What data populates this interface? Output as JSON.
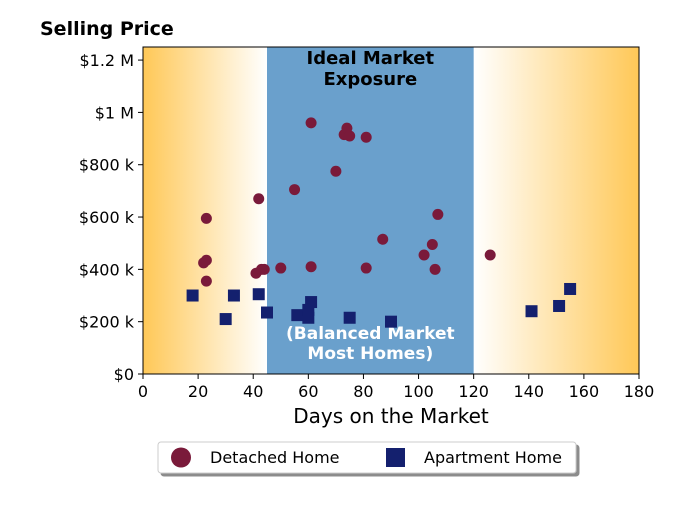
{
  "chart_data": {
    "type": "scatter",
    "title": "Selling Price",
    "xlabel": "Days on the Market",
    "ylabel": "",
    "xlim": [
      0,
      180
    ],
    "ylim": [
      0,
      1250000
    ],
    "x_ticks": [
      0,
      20,
      40,
      60,
      80,
      100,
      120,
      140,
      160,
      180
    ],
    "x_tick_labels": [
      "0",
      "20",
      "40",
      "60",
      "80",
      "100",
      "120",
      "140",
      "160",
      "180"
    ],
    "y_ticks": [
      0,
      200000,
      400000,
      600000,
      800000,
      1000000,
      1200000
    ],
    "y_tick_labels": [
      "$0",
      "$200 k",
      "$400 k",
      "$600 k",
      "$800 k",
      "$1 M",
      "$1.2 M"
    ],
    "grid": false,
    "legend_position": "bottom-center",
    "band": {
      "x_range": [
        45,
        120
      ],
      "color": "#6aa0cc",
      "label_line1": "Ideal Market",
      "label_line2": "Exposure",
      "sublabel_line1": "(Balanced Market",
      "sublabel_line2": "Most Homes)"
    },
    "background_gradient_color": "#ffc857",
    "series": [
      {
        "name": "Detached Home",
        "marker": "circle",
        "color": "#7a1a3a",
        "points": [
          [
            22,
            425000
          ],
          [
            23,
            435000
          ],
          [
            23,
            355000
          ],
          [
            23,
            595000
          ],
          [
            41,
            385000
          ],
          [
            42,
            670000
          ],
          [
            43,
            400000
          ],
          [
            44,
            400000
          ],
          [
            50,
            405000
          ],
          [
            55,
            705000
          ],
          [
            61,
            960000
          ],
          [
            61,
            410000
          ],
          [
            70,
            775000
          ],
          [
            73,
            915000
          ],
          [
            74,
            940000
          ],
          [
            75,
            910000
          ],
          [
            81,
            905000
          ],
          [
            81,
            405000
          ],
          [
            87,
            515000
          ],
          [
            102,
            455000
          ],
          [
            105,
            495000
          ],
          [
            106,
            400000
          ],
          [
            107,
            610000
          ],
          [
            126,
            455000
          ]
        ]
      },
      {
        "name": "Apartment Home",
        "marker": "square",
        "color": "#14206e",
        "points": [
          [
            18,
            300000
          ],
          [
            30,
            210000
          ],
          [
            33,
            300000
          ],
          [
            42,
            305000
          ],
          [
            45,
            235000
          ],
          [
            56,
            225000
          ],
          [
            60,
            215000
          ],
          [
            60,
            245000
          ],
          [
            61,
            275000
          ],
          [
            75,
            215000
          ],
          [
            90,
            200000
          ],
          [
            141,
            240000
          ],
          [
            151,
            260000
          ],
          [
            155,
            325000
          ]
        ]
      }
    ]
  }
}
